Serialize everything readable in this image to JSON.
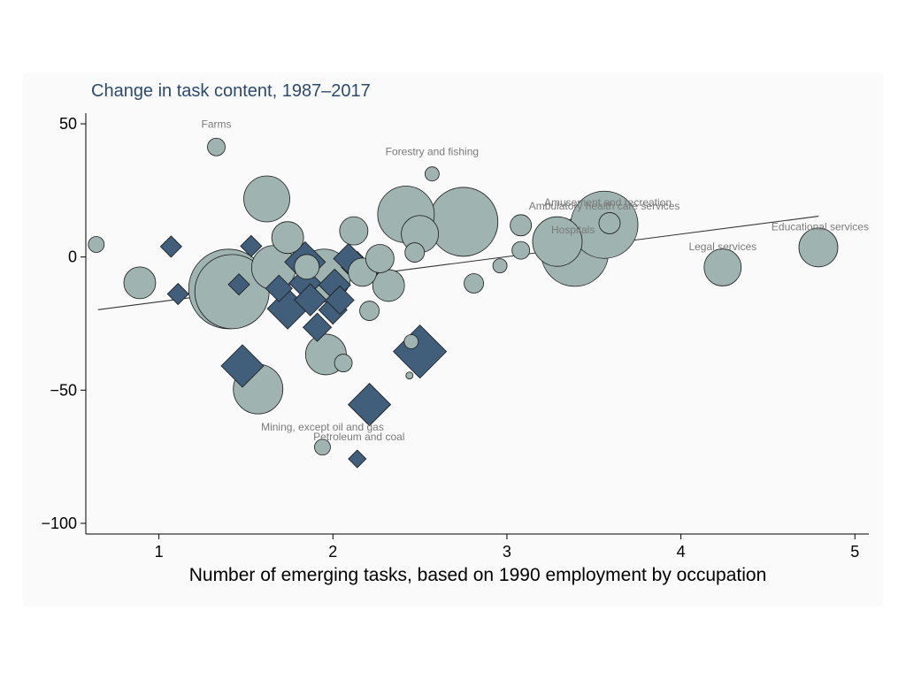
{
  "chart_data": {
    "type": "scatter",
    "title": "Change in task content, 1987–2017",
    "xlabel": "Number of emerging tasks, based on 1990 employment by occupation",
    "ylabel": "",
    "xlim": [
      0.58,
      5.08
    ],
    "ylim": [
      -104,
      54
    ],
    "xticks": [
      1,
      2,
      3,
      4,
      5
    ],
    "yticks": [
      50,
      0,
      -50,
      -100
    ],
    "ytick_labels": [
      "50",
      "0",
      "−50",
      "−100"
    ],
    "grid": false,
    "legend": "none",
    "colors": {
      "circle_fill": "#9fb3b0",
      "diamond_fill": "#415e7a",
      "edge": "#1a1a1a",
      "fit_line": "#333333",
      "title": "#2c4a6e",
      "annotation": "#7a7a7a"
    },
    "fit_line": {
      "x": [
        0.65,
        4.79
      ],
      "y": [
        -19.8,
        15.3
      ]
    },
    "series": [
      {
        "marker": "circle",
        "points": [
          {
            "x": 0.64,
            "y": 4.7,
            "size": 9
          },
          {
            "x": 0.89,
            "y": -9.7,
            "size": 18
          },
          {
            "x": 1.33,
            "y": 41.3,
            "size": 10
          },
          {
            "x": 1.4,
            "y": -12.0,
            "size": 45
          },
          {
            "x": 1.42,
            "y": -13.0,
            "size": 42
          },
          {
            "x": 1.57,
            "y": -49.6,
            "size": 28
          },
          {
            "x": 1.62,
            "y": 21.8,
            "size": 26
          },
          {
            "x": 1.66,
            "y": -4.0,
            "size": 25
          },
          {
            "x": 1.74,
            "y": 7.3,
            "size": 18
          },
          {
            "x": 1.85,
            "y": -3.7,
            "size": 14
          },
          {
            "x": 1.95,
            "y": -7.0,
            "size": 30
          },
          {
            "x": 1.96,
            "y": -36.6,
            "size": 23
          },
          {
            "x": 2.06,
            "y": -39.8,
            "size": 10
          },
          {
            "x": 2.12,
            "y": 9.8,
            "size": 16
          },
          {
            "x": 2.17,
            "y": -5.7,
            "size": 16
          },
          {
            "x": 2.21,
            "y": -20.2,
            "size": 11
          },
          {
            "x": 2.27,
            "y": -0.6,
            "size": 16
          },
          {
            "x": 2.32,
            "y": -10.7,
            "size": 18
          },
          {
            "x": 2.42,
            "y": 16.0,
            "size": 32
          },
          {
            "x": 2.45,
            "y": -31.8,
            "size": 8
          },
          {
            "x": 2.47,
            "y": 1.7,
            "size": 11
          },
          {
            "x": 2.5,
            "y": 8.6,
            "size": 21
          },
          {
            "x": 2.57,
            "y": 31.2,
            "size": 8
          },
          {
            "x": 2.75,
            "y": 13.2,
            "size": 39
          },
          {
            "x": 2.81,
            "y": -9.9,
            "size": 11
          },
          {
            "x": 2.96,
            "y": -3.3,
            "size": 8
          },
          {
            "x": 3.08,
            "y": 11.9,
            "size": 12
          },
          {
            "x": 3.08,
            "y": 2.5,
            "size": 10
          },
          {
            "x": 3.29,
            "y": 5.8,
            "size": 28
          },
          {
            "x": 3.39,
            "y": 1.6,
            "size": 38
          },
          {
            "x": 3.56,
            "y": 12.1,
            "size": 38
          },
          {
            "x": 3.59,
            "y": 12.7,
            "size": 12
          },
          {
            "x": 4.24,
            "y": -3.9,
            "size": 21
          },
          {
            "x": 4.79,
            "y": 3.6,
            "size": 22
          },
          {
            "x": 1.94,
            "y": -71.4,
            "size": 9
          },
          {
            "x": 2.44,
            "y": -44.5,
            "size": 4
          }
        ]
      },
      {
        "marker": "diamond",
        "points": [
          {
            "x": 1.07,
            "y": 3.9,
            "size": 12
          },
          {
            "x": 1.11,
            "y": -13.9,
            "size": 12
          },
          {
            "x": 1.46,
            "y": -10.3,
            "size": 12
          },
          {
            "x": 1.48,
            "y": -40.9,
            "size": 24
          },
          {
            "x": 1.53,
            "y": 4.1,
            "size": 12
          },
          {
            "x": 1.69,
            "y": -11.8,
            "size": 15
          },
          {
            "x": 1.74,
            "y": -19.4,
            "size": 23
          },
          {
            "x": 1.84,
            "y": -1.9,
            "size": 23
          },
          {
            "x": 1.84,
            "y": -9.8,
            "size": 18
          },
          {
            "x": 1.87,
            "y": -16.1,
            "size": 18
          },
          {
            "x": 1.91,
            "y": -26.4,
            "size": 16
          },
          {
            "x": 2.0,
            "y": -19.9,
            "size": 16
          },
          {
            "x": 2.04,
            "y": -16.2,
            "size": 16
          },
          {
            "x": 2.01,
            "y": -10.5,
            "size": 18
          },
          {
            "x": 2.09,
            "y": -0.6,
            "size": 17
          },
          {
            "x": 2.14,
            "y": -3.9,
            "size": 18
          },
          {
            "x": 2.14,
            "y": -75.8,
            "size": 10
          },
          {
            "x": 2.21,
            "y": -55.4,
            "size": 24
          },
          {
            "x": 2.5,
            "y": -35.5,
            "size": 30
          }
        ]
      }
    ],
    "annotations": [
      {
        "text": "Farms",
        "x": 1.33,
        "y": 48.5
      },
      {
        "text": "Forestry and fishing",
        "x": 2.57,
        "y": 38.3
      },
      {
        "text": "Amusement and recreation",
        "x": 3.58,
        "y": 19.2
      },
      {
        "text": "Ambulatory health care services",
        "x": 3.56,
        "y": 17.8
      },
      {
        "text": "Hospitals",
        "x": 3.38,
        "y": 8.9
      },
      {
        "text": "Educational services",
        "x": 4.8,
        "y": 10.0
      },
      {
        "text": "Legal services",
        "x": 4.24,
        "y": 2.5
      },
      {
        "text": "Mining, except oil and gas",
        "x": 1.94,
        "y": -65.2
      },
      {
        "text": "Petroleum and coal",
        "x": 2.15,
        "y": -68.8
      }
    ]
  }
}
